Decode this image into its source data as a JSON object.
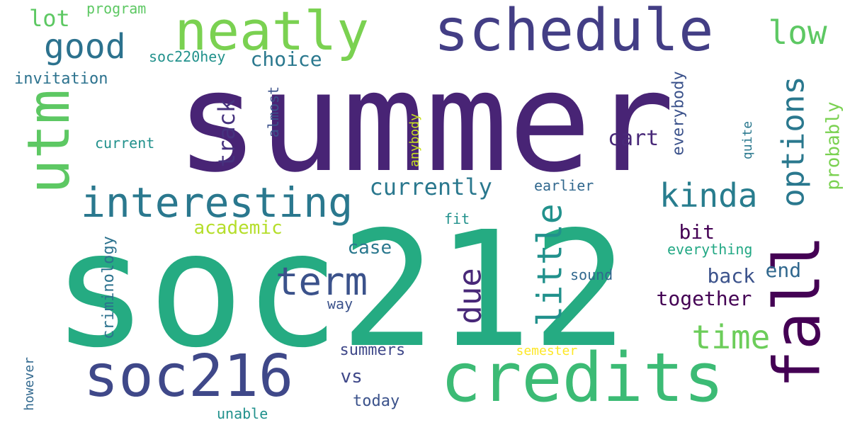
{
  "words": [
    {
      "text": "summer",
      "color": "#482475",
      "rotated": false
    },
    {
      "text": "soc212",
      "color": "#25AB82",
      "rotated": false
    },
    {
      "text": "credits",
      "color": "#3CBB75",
      "rotated": false
    },
    {
      "text": "schedule",
      "color": "#433E85",
      "rotated": false
    },
    {
      "text": "neatly",
      "color": "#7AD151",
      "rotated": false
    },
    {
      "text": "soc216",
      "color": "#3F4889",
      "rotated": false
    },
    {
      "text": "utm",
      "color": "#5DC863",
      "rotated": true
    },
    {
      "text": "fall",
      "color": "#440154",
      "rotated": true
    },
    {
      "text": "interesting",
      "color": "#2A788E",
      "rotated": false
    },
    {
      "text": "options",
      "color": "#2A788E",
      "rotated": true
    },
    {
      "text": "kinda",
      "color": "#287D8E",
      "rotated": false
    },
    {
      "text": "term",
      "color": "#3B528B",
      "rotated": false
    },
    {
      "text": "little",
      "color": "#21918C",
      "rotated": true
    },
    {
      "text": "good",
      "color": "#2C728E",
      "rotated": false
    },
    {
      "text": "low",
      "color": "#5DC863",
      "rotated": false
    },
    {
      "text": "time",
      "color": "#6CCD5A",
      "rotated": false
    },
    {
      "text": "due",
      "color": "#482878",
      "rotated": true
    },
    {
      "text": "currently",
      "color": "#2A788E",
      "rotated": false
    },
    {
      "text": "track",
      "color": "#46327E",
      "rotated": true
    },
    {
      "text": "probably",
      "color": "#7AD151",
      "rotated": true
    },
    {
      "text": "lot",
      "color": "#5DC863",
      "rotated": false
    },
    {
      "text": "cart",
      "color": "#482878",
      "rotated": false
    },
    {
      "text": "academic",
      "color": "#B5DE2B",
      "rotated": false
    },
    {
      "text": "choice",
      "color": "#2A788E",
      "rotated": false
    },
    {
      "text": "bit",
      "color": "#440154",
      "rotated": false
    },
    {
      "text": "back",
      "color": "#3B528B",
      "rotated": false
    },
    {
      "text": "end",
      "color": "#31688E",
      "rotated": false
    },
    {
      "text": "together",
      "color": "#440154",
      "rotated": false
    },
    {
      "text": "case",
      "color": "#2A788E",
      "rotated": false
    },
    {
      "text": "vs",
      "color": "#3F4889",
      "rotated": false
    },
    {
      "text": "everybody",
      "color": "#3B528B",
      "rotated": true
    },
    {
      "text": "criminology",
      "color": "#2C728E",
      "rotated": true
    },
    {
      "text": "invitation",
      "color": "#2C728E",
      "rotated": false
    },
    {
      "text": "soc220hey",
      "color": "#21918C",
      "rotated": false
    },
    {
      "text": "program",
      "color": "#5DC863",
      "rotated": false
    },
    {
      "text": "almost",
      "color": "#3B528B",
      "rotated": true
    },
    {
      "text": "anybody",
      "color": "#C8E020",
      "rotated": true
    },
    {
      "text": "quite",
      "color": "#2A788E",
      "rotated": true
    },
    {
      "text": "current",
      "color": "#21918C",
      "rotated": false
    },
    {
      "text": "earlier",
      "color": "#31688E",
      "rotated": false
    },
    {
      "text": "fit",
      "color": "#21918C",
      "rotated": false
    },
    {
      "text": "everything",
      "color": "#22A884",
      "rotated": false
    },
    {
      "text": "sound",
      "color": "#31688E",
      "rotated": false
    },
    {
      "text": "way",
      "color": "#3B528B",
      "rotated": false
    },
    {
      "text": "summers",
      "color": "#3F4889",
      "rotated": false
    },
    {
      "text": "semester",
      "color": "#FDE725",
      "rotated": false
    },
    {
      "text": "today",
      "color": "#3B528B",
      "rotated": false
    },
    {
      "text": "however",
      "color": "#31688E",
      "rotated": true
    },
    {
      "text": "unable",
      "color": "#21918C",
      "rotated": false
    }
  ]
}
